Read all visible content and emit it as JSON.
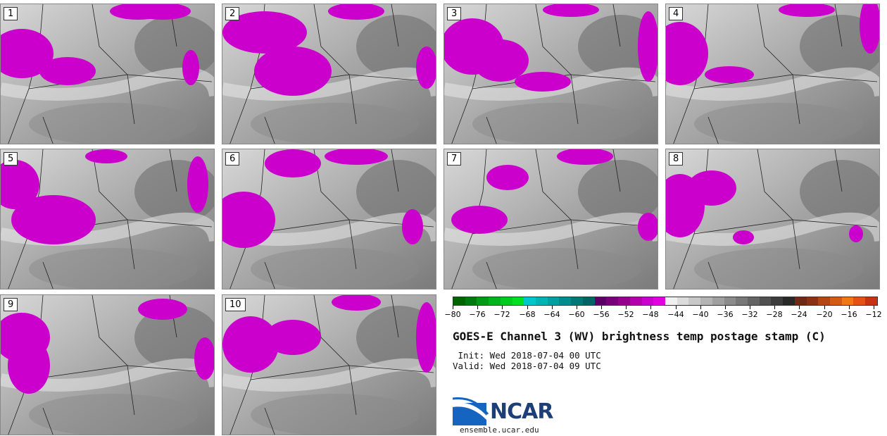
{
  "panels": [
    {
      "label": "1"
    },
    {
      "label": "2"
    },
    {
      "label": "3"
    },
    {
      "label": "4"
    },
    {
      "label": "5"
    },
    {
      "label": "6"
    },
    {
      "label": "7"
    },
    {
      "label": "8"
    },
    {
      "label": "9"
    },
    {
      "label": "10"
    }
  ],
  "colorbar": {
    "colors": [
      "#006400",
      "#007a10",
      "#009a18",
      "#00b41e",
      "#00cc20",
      "#00e020",
      "#00c8c8",
      "#00b4b4",
      "#00a0a0",
      "#008c8c",
      "#007878",
      "#006464",
      "#5a0064",
      "#780078",
      "#96008c",
      "#b400aa",
      "#cc00cc",
      "#e000e0",
      "#f0f0f0",
      "#dcdcdc",
      "#c8c8c8",
      "#b4b4b4",
      "#a0a0a0",
      "#8c8c8c",
      "#787878",
      "#646464",
      "#505050",
      "#3c3c3c",
      "#282828",
      "#6e2a14",
      "#8c3214",
      "#b44614",
      "#d25a14",
      "#f07814",
      "#e65014",
      "#c83214"
    ],
    "tick_labels": [
      "−80",
      "−76",
      "−72",
      "−68",
      "−64",
      "−60",
      "−56",
      "−52",
      "−48",
      "−44",
      "−40",
      "−36",
      "−32",
      "−28",
      "−24",
      "−20",
      "−16",
      "−12"
    ],
    "min": -80,
    "max": -10
  },
  "title": "GOES-E Channel 3 (WV) brightness temp postage stamp (C)",
  "init": " Init: Wed 2018-07-04 00 UTC",
  "valid": "Valid: Wed 2018-07-04 09 UTC",
  "logo_text": "NCAR",
  "url": "ensemble.ucar.edu",
  "colors": {
    "moist": "#cc00cc",
    "land_bg": "#bdbdbd",
    "borders": "#222222"
  }
}
